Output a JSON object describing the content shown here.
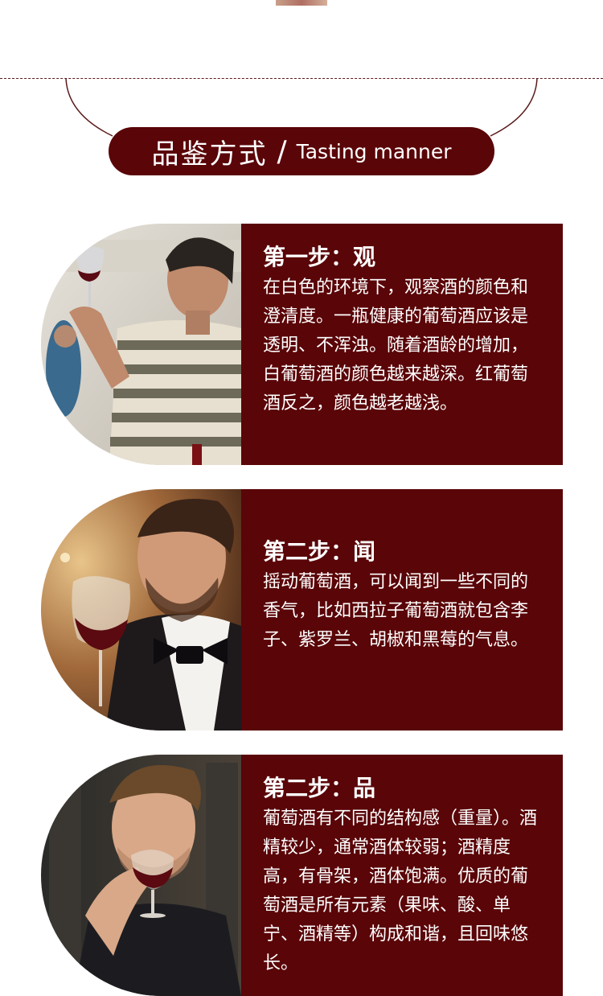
{
  "section": {
    "title_cn": "品鉴方式",
    "title_slash": "/",
    "title_en": "Tasting manner"
  },
  "steps": [
    {
      "title": "第一步：观",
      "body": "在白色的环境下，观察酒的颜色和澄清度。一瓶健康的葡萄酒应该是透明、不浑浊。随着酒龄的增加，白葡萄酒的颜色越来越深。红葡萄酒反之，颜色越老越浅。"
    },
    {
      "title": "第二步：闻",
      "body": "摇动葡萄酒，可以闻到一些不同的香气，比如西拉子葡萄酒就包含李子、紫罗兰、胡椒和黑莓的气息。"
    },
    {
      "title": "第二步：品",
      "body": "葡萄酒有不同的结构感（重量）。酒精较少，通常酒体较弱；酒精度高，有骨架，酒体饱满。优质的葡萄酒是所有元素（果味、酸、单宁、酒精等）构成和谐，且回味悠长。"
    }
  ],
  "colors": {
    "brand": "#5a0508",
    "text_on_brand": "#ffffff"
  }
}
